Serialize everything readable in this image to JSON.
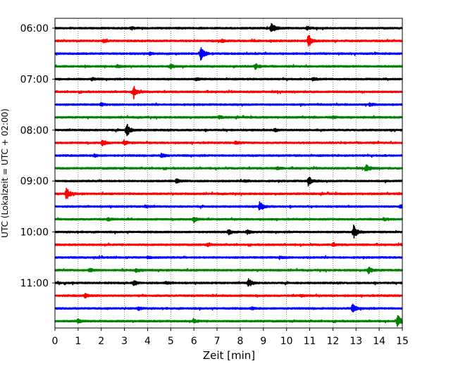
{
  "chart_data": {
    "type": "line",
    "title": "",
    "xlabel": "Zeit  [min]",
    "ylabel": "UTC (Lokalzeit = UTC + 02:00)",
    "xlim": [
      0,
      15
    ],
    "xticks": [
      "0",
      "1",
      "2",
      "3",
      "4",
      "5",
      "6",
      "7",
      "8",
      "9",
      "10",
      "11",
      "12",
      "13",
      "14",
      "15"
    ],
    "grid": "vertical dotted",
    "trace_colors": [
      "#000000",
      "#ff0000",
      "#0000ff",
      "#008000"
    ],
    "row_labels": [
      {
        "row": 0,
        "text": "06:00"
      },
      {
        "row": 4,
        "text": "07:00"
      },
      {
        "row": 8,
        "text": "08:00"
      },
      {
        "row": 12,
        "text": "09:00"
      },
      {
        "row": 16,
        "text": "10:00"
      },
      {
        "row": 20,
        "text": "11:00"
      }
    ],
    "rows": [
      {
        "start": "06:00",
        "events": [
          {
            "t": 9.35,
            "amp": 1.0
          },
          {
            "t": 3.3,
            "amp": 0.25
          },
          {
            "t": 10.9,
            "amp": 0.25
          }
        ]
      },
      {
        "start": "06:15",
        "events": [
          {
            "t": 10.95,
            "amp": 1.0
          },
          {
            "t": 2.1,
            "amp": 0.25
          },
          {
            "t": 7.2,
            "amp": 0.2
          }
        ]
      },
      {
        "start": "06:30",
        "events": [
          {
            "t": 6.3,
            "amp": 1.0
          },
          {
            "t": 4.1,
            "amp": 0.2
          }
        ]
      },
      {
        "start": "06:45",
        "events": [
          {
            "t": 8.65,
            "amp": 0.45
          },
          {
            "t": 5.0,
            "amp": 0.3
          },
          {
            "t": 2.7,
            "amp": 0.2
          }
        ]
      },
      {
        "start": "07:00",
        "events": [
          {
            "t": 11.15,
            "amp": 0.3
          },
          {
            "t": 1.6,
            "amp": 0.2
          },
          {
            "t": 6.1,
            "amp": 0.2
          }
        ]
      },
      {
        "start": "07:15",
        "events": [
          {
            "t": 3.4,
            "amp": 1.0
          }
        ]
      },
      {
        "start": "07:30",
        "events": [
          {
            "t": 2.0,
            "amp": 0.2
          },
          {
            "t": 13.6,
            "amp": 0.2
          }
        ]
      },
      {
        "start": "07:45",
        "events": [
          {
            "t": 7.1,
            "amp": 0.2
          },
          {
            "t": 12.0,
            "amp": 0.15
          }
        ]
      },
      {
        "start": "08:00",
        "events": [
          {
            "t": 3.1,
            "amp": 1.0
          },
          {
            "t": 9.5,
            "amp": 0.2
          }
        ]
      },
      {
        "start": "08:15",
        "events": [
          {
            "t": 2.05,
            "amp": 0.5
          },
          {
            "t": 3.0,
            "amp": 0.3
          },
          {
            "t": 7.8,
            "amp": 0.2
          }
        ]
      },
      {
        "start": "08:30",
        "events": [
          {
            "t": 4.6,
            "amp": 0.3
          },
          {
            "t": 1.7,
            "amp": 0.2
          }
        ]
      },
      {
        "start": "08:45",
        "events": [
          {
            "t": 13.45,
            "amp": 0.5
          },
          {
            "t": 9.6,
            "amp": 0.15
          }
        ]
      },
      {
        "start": "09:00",
        "events": [
          {
            "t": 10.95,
            "amp": 0.75
          },
          {
            "t": 5.25,
            "amp": 0.3
          },
          {
            "t": 8.2,
            "amp": 0.2
          }
        ]
      },
      {
        "start": "09:15",
        "events": [
          {
            "t": 0.5,
            "amp": 1.0
          }
        ]
      },
      {
        "start": "09:30",
        "events": [
          {
            "t": 8.85,
            "amp": 0.85
          },
          {
            "t": 14.9,
            "amp": 0.25
          },
          {
            "t": 3.9,
            "amp": 0.2
          }
        ]
      },
      {
        "start": "09:45",
        "events": [
          {
            "t": 6.0,
            "amp": 0.45
          },
          {
            "t": 14.2,
            "amp": 0.2
          },
          {
            "t": 2.3,
            "amp": 0.2
          }
        ]
      },
      {
        "start": "10:00",
        "events": [
          {
            "t": 12.9,
            "amp": 1.1
          },
          {
            "t": 7.5,
            "amp": 0.4
          },
          {
            "t": 8.3,
            "amp": 0.3
          }
        ]
      },
      {
        "start": "10:15",
        "events": [
          {
            "t": 6.6,
            "amp": 0.2
          },
          {
            "t": 12.0,
            "amp": 0.2
          }
        ]
      },
      {
        "start": "10:30",
        "events": [
          {
            "t": 9.7,
            "amp": 0.2
          },
          {
            "t": 4.0,
            "amp": 0.15
          }
        ]
      },
      {
        "start": "10:45",
        "events": [
          {
            "t": 13.55,
            "amp": 0.55
          },
          {
            "t": 1.5,
            "amp": 0.3
          },
          {
            "t": 3.5,
            "amp": 0.25
          }
        ]
      },
      {
        "start": "11:00",
        "events": [
          {
            "t": 8.35,
            "amp": 0.7
          },
          {
            "t": 3.4,
            "amp": 0.3
          },
          {
            "t": 4.8,
            "amp": 0.2
          }
        ]
      },
      {
        "start": "11:15",
        "events": [
          {
            "t": 1.3,
            "amp": 0.3
          },
          {
            "t": 10.6,
            "amp": 0.15
          }
        ]
      },
      {
        "start": "11:30",
        "events": [
          {
            "t": 12.85,
            "amp": 0.65
          },
          {
            "t": 3.6,
            "amp": 0.25
          },
          {
            "t": 8.5,
            "amp": 0.15
          }
        ]
      },
      {
        "start": "11:45",
        "events": [
          {
            "t": 14.8,
            "amp": 1.0
          },
          {
            "t": 1.0,
            "amp": 0.3
          },
          {
            "t": 6.0,
            "amp": 0.3
          }
        ]
      }
    ]
  }
}
